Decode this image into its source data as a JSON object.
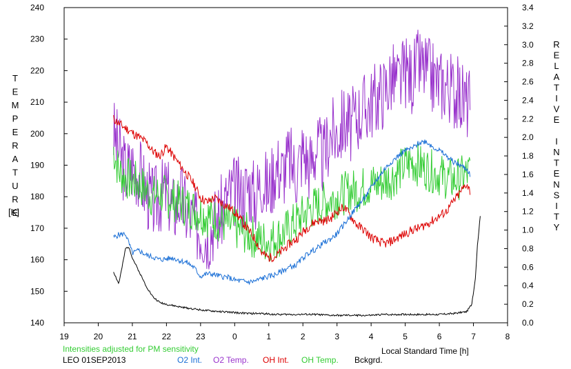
{
  "chart_data": {
    "type": "line",
    "xlabel": "Local Standard Time [h]",
    "x_range": [
      19,
      32
    ],
    "x_tick_labels": [
      "19",
      "20",
      "21",
      "22",
      "23",
      "0",
      "1",
      "2",
      "3",
      "4",
      "5",
      "6",
      "7",
      "8"
    ],
    "ylabel_left": "TEMPERATURE",
    "ylabel_left_unit": "[K]",
    "ylim_left": [
      140,
      240
    ],
    "ylabel_right": "RELATIVE INTENSITY",
    "ylim_right": [
      0.0,
      3.4
    ],
    "y_left_ticks": [
      140,
      150,
      160,
      170,
      180,
      190,
      200,
      210,
      220,
      230,
      240
    ],
    "y_right_ticks": [
      "0.0",
      "0.2",
      "0.4",
      "0.6",
      "0.8",
      "1.0",
      "1.2",
      "1.4",
      "1.6",
      "1.8",
      "2.0",
      "2.2",
      "2.4",
      "2.6",
      "2.8",
      "3.0",
      "3.2",
      "3.4"
    ],
    "grid": false,
    "series": [
      {
        "name": "O2 Temp.",
        "axis": "left",
        "color": "#9933cc",
        "x": [
          20.45,
          20.6,
          20.8,
          21.0,
          21.2,
          21.4,
          21.6,
          21.8,
          22.0,
          22.2,
          22.4,
          22.6,
          22.8,
          23.0,
          23.2,
          23.4,
          23.6,
          23.8,
          24.0,
          24.2,
          24.4,
          24.6,
          24.8,
          25.0,
          25.2,
          25.4,
          25.6,
          25.8,
          26.0,
          26.2,
          26.4,
          26.6,
          26.8,
          27.0,
          27.2,
          27.4,
          27.6,
          27.8,
          28.0,
          28.2,
          28.4,
          28.6,
          28.8,
          29.0,
          29.2,
          29.4,
          29.6,
          29.8,
          30.0,
          30.2,
          30.4,
          30.6,
          30.8,
          30.9
        ],
        "y": [
          200,
          195,
          188,
          190,
          188,
          182,
          178,
          180,
          182,
          176,
          180,
          175,
          172,
          170,
          168,
          172,
          175,
          180,
          182,
          180,
          184,
          180,
          186,
          182,
          190,
          188,
          192,
          188,
          195,
          190,
          196,
          192,
          200,
          200,
          204,
          202,
          206,
          208,
          210,
          212,
          214,
          218,
          216,
          220,
          218,
          222,
          220,
          218,
          216,
          216,
          214,
          212,
          210,
          210
        ],
        "amplitude": 12,
        "noise_seed": 3
      },
      {
        "name": "OH Temp.",
        "axis": "left",
        "color": "#33cc33",
        "x": [
          20.45,
          20.6,
          20.8,
          21.0,
          21.2,
          21.4,
          21.6,
          21.8,
          22.0,
          22.2,
          22.4,
          22.6,
          22.8,
          23.0,
          23.2,
          23.4,
          23.6,
          23.8,
          24.0,
          24.2,
          24.4,
          24.6,
          24.8,
          25.0,
          25.2,
          25.4,
          25.6,
          25.8,
          26.0,
          26.2,
          26.4,
          26.6,
          26.8,
          27.0,
          27.2,
          27.4,
          27.6,
          27.8,
          28.0,
          28.2,
          28.4,
          28.6,
          28.8,
          29.0,
          29.2,
          29.4,
          29.6,
          29.8,
          30.0,
          30.2,
          30.4,
          30.6,
          30.8,
          30.9
        ],
        "y": [
          195,
          188,
          186,
          185,
          184,
          182,
          180,
          181,
          180,
          179,
          178,
          177,
          176,
          175,
          174,
          173,
          172,
          171,
          170,
          169,
          168,
          167,
          166,
          166,
          167,
          168,
          170,
          172,
          174,
          176,
          177,
          178,
          179,
          180,
          181,
          182,
          182,
          183,
          184,
          184,
          185,
          186,
          188,
          190,
          191,
          190,
          189,
          188,
          187,
          186,
          185,
          186,
          187,
          188
        ],
        "amplitude": 7,
        "noise_seed": 7
      },
      {
        "name": "OH Int.",
        "axis": "right",
        "color": "#dd0000",
        "x": [
          20.45,
          20.6,
          20.8,
          21.0,
          21.2,
          21.4,
          21.6,
          21.8,
          22.0,
          22.2,
          22.4,
          22.6,
          22.8,
          23.0,
          23.2,
          23.4,
          23.6,
          23.8,
          24.0,
          24.2,
          24.4,
          24.6,
          24.8,
          25.0,
          25.2,
          25.4,
          25.6,
          25.8,
          26.0,
          26.2,
          26.4,
          26.6,
          26.8,
          27.0,
          27.2,
          27.4,
          27.6,
          27.8,
          28.0,
          28.2,
          28.4,
          28.6,
          28.8,
          29.0,
          29.2,
          29.4,
          29.6,
          29.8,
          30.0,
          30.2,
          30.4,
          30.6,
          30.8,
          30.9
        ],
        "y": [
          2.2,
          2.15,
          2.1,
          2.05,
          2.0,
          1.95,
          1.85,
          1.8,
          1.9,
          1.8,
          1.7,
          1.6,
          1.5,
          1.35,
          1.3,
          1.35,
          1.3,
          1.25,
          1.2,
          1.1,
          1.0,
          0.9,
          0.75,
          0.7,
          0.72,
          0.78,
          0.85,
          0.9,
          0.98,
          1.05,
          1.1,
          1.1,
          1.12,
          1.2,
          1.25,
          1.15,
          1.05,
          1.0,
          0.92,
          0.88,
          0.85,
          0.88,
          0.92,
          0.96,
          1.0,
          1.02,
          1.06,
          1.1,
          1.15,
          1.2,
          1.3,
          1.4,
          1.5,
          1.42
        ],
        "amplitude": 0.05,
        "noise_seed": 11
      },
      {
        "name": "O2 Int.",
        "axis": "right",
        "color": "#1a6fd6",
        "x": [
          20.45,
          20.6,
          20.8,
          21.0,
          21.2,
          21.4,
          21.6,
          21.8,
          22.0,
          22.2,
          22.4,
          22.6,
          22.8,
          23.0,
          23.2,
          23.4,
          23.6,
          23.8,
          24.0,
          24.2,
          24.4,
          24.6,
          24.8,
          25.0,
          25.2,
          25.4,
          25.6,
          25.8,
          26.0,
          26.2,
          26.4,
          26.6,
          26.8,
          27.0,
          27.2,
          27.4,
          27.6,
          27.8,
          28.0,
          28.2,
          28.4,
          28.6,
          28.8,
          29.0,
          29.2,
          29.4,
          29.6,
          29.8,
          30.0,
          30.2,
          30.4,
          30.6,
          30.8,
          30.9
        ],
        "y": [
          0.92,
          0.95,
          0.96,
          0.75,
          0.78,
          0.73,
          0.71,
          0.68,
          0.69,
          0.7,
          0.67,
          0.65,
          0.6,
          0.5,
          0.53,
          0.52,
          0.5,
          0.49,
          0.46,
          0.45,
          0.44,
          0.45,
          0.48,
          0.5,
          0.52,
          0.56,
          0.6,
          0.62,
          0.7,
          0.76,
          0.8,
          0.86,
          0.9,
          0.96,
          1.06,
          1.16,
          1.26,
          1.34,
          1.46,
          1.56,
          1.66,
          1.74,
          1.8,
          1.86,
          1.88,
          1.94,
          1.96,
          1.9,
          1.86,
          1.8,
          1.74,
          1.7,
          1.66,
          1.6
        ],
        "amplitude": 0.03,
        "noise_seed": 5
      },
      {
        "name": "Bckgrd.",
        "axis": "right",
        "color": "#000000",
        "x": [
          20.45,
          20.6,
          20.7,
          20.8,
          20.9,
          21.0,
          21.2,
          21.4,
          21.6,
          21.8,
          22.0,
          22.4,
          22.8,
          23.2,
          23.6,
          24.0,
          24.4,
          24.8,
          25.2,
          25.6,
          26.0,
          26.4,
          26.8,
          27.2,
          27.6,
          28.0,
          28.4,
          28.8,
          29.2,
          29.6,
          30.0,
          30.4,
          30.8,
          30.95,
          31.05,
          31.12,
          31.2
        ],
        "y": [
          0.55,
          0.42,
          0.6,
          0.8,
          0.82,
          0.7,
          0.55,
          0.4,
          0.28,
          0.22,
          0.2,
          0.17,
          0.15,
          0.13,
          0.12,
          0.11,
          0.1,
          0.1,
          0.09,
          0.09,
          0.09,
          0.09,
          0.08,
          0.08,
          0.08,
          0.08,
          0.09,
          0.09,
          0.09,
          0.09,
          0.09,
          0.1,
          0.12,
          0.2,
          0.45,
          0.85,
          1.15
        ],
        "amplitude": 0.01,
        "noise_seed": 2
      }
    ]
  },
  "notes": {
    "adjust": "Intensities adjusted for PM sensitivity",
    "adjust_color": "#33cc33",
    "station_date": "LEO 01SEP2013"
  },
  "legend": [
    {
      "label": "O2 Int.",
      "color": "#1a6fd6"
    },
    {
      "label": "O2 Temp.",
      "color": "#9933cc"
    },
    {
      "label": "OH Int.",
      "color": "#dd0000"
    },
    {
      "label": "OH Temp.",
      "color": "#33cc33"
    },
    {
      "label": "Bckgrd.",
      "color": "#000000"
    }
  ]
}
